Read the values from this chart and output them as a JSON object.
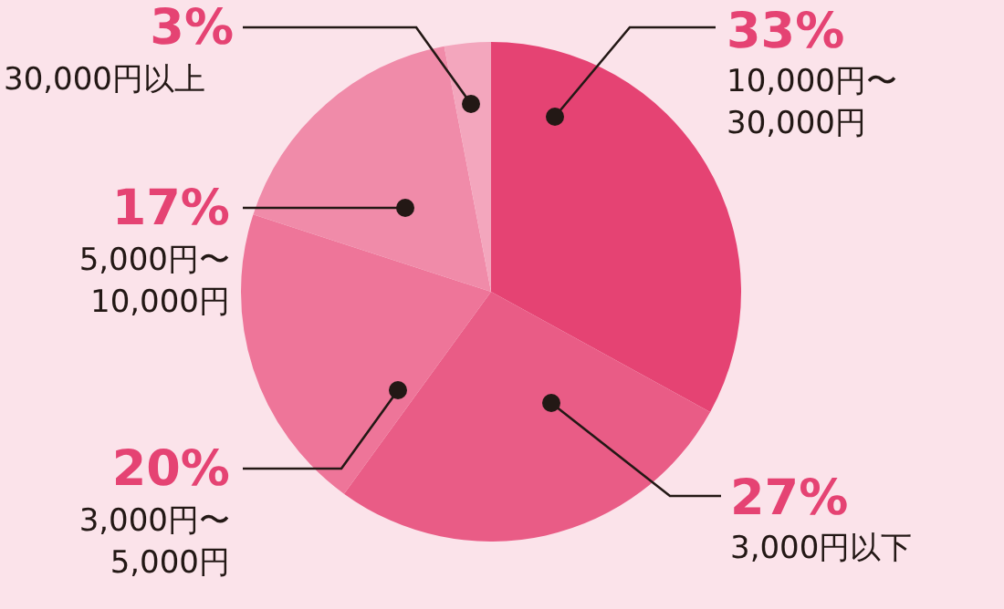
{
  "chart_data": {
    "type": "pie",
    "categories": [
      "10,000円〜30,000円",
      "3,000円以下",
      "3,000円〜5,000円",
      "5,000円〜10,000円",
      "30,000円以上"
    ],
    "values": [
      33,
      27,
      20,
      17,
      3
    ],
    "value_labels": [
      "33%",
      "27%",
      "20%",
      "17%",
      "3%"
    ],
    "colors": [
      "#e54373",
      "#e95c86",
      "#ee7599",
      "#f08ba9",
      "#f3a6bd"
    ],
    "legend": false
  }
}
